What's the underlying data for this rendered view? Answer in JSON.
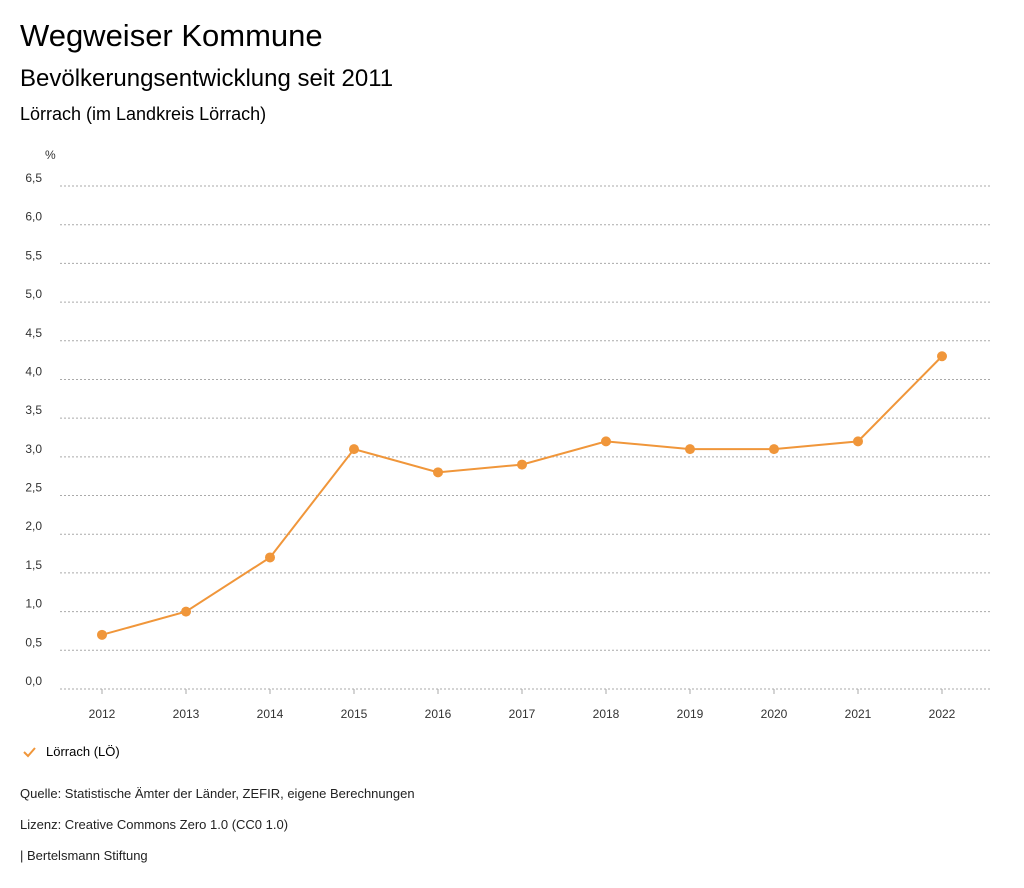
{
  "header": {
    "title": "Wegweiser Kommune",
    "subtitle": "Bevölkerungsentwicklung seit 2011",
    "region": "Lörrach (im Landkreis Lörrach)"
  },
  "chart_data": {
    "type": "line",
    "ylabel": "%",
    "ylim": [
      0,
      6.5
    ],
    "yticks": [
      "0,0",
      "0,5",
      "1,0",
      "1,5",
      "2,0",
      "2,5",
      "3,0",
      "3,5",
      "4,0",
      "4,5",
      "5,0",
      "5,5",
      "6,0",
      "6,5"
    ],
    "categories": [
      "2012",
      "2013",
      "2014",
      "2015",
      "2016",
      "2017",
      "2018",
      "2019",
      "2020",
      "2021",
      "2022"
    ],
    "series": [
      {
        "name": "Lörrach (LÖ)",
        "color": "#f0963a",
        "values": [
          0.7,
          1.0,
          1.7,
          3.1,
          2.8,
          2.9,
          3.2,
          3.1,
          3.1,
          3.2,
          4.3
        ]
      }
    ],
    "grid": true,
    "legend": "bottom-left"
  },
  "legend": {
    "label": "Lörrach (LÖ)",
    "icon": "check-icon"
  },
  "footer": {
    "source": "Quelle: Statistische Ämter der Länder, ZEFIR, eigene Berechnungen",
    "license": "Lizenz: Creative Commons Zero 1.0 (CC0 1.0)",
    "publisher": "| Bertelsmann Stiftung"
  }
}
